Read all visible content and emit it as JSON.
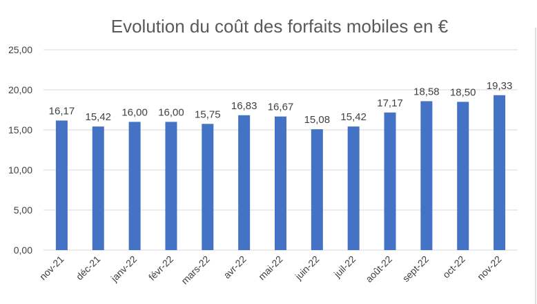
{
  "chart_data": {
    "type": "bar",
    "title": "Evolution du coût des forfaits mobiles en €",
    "categories": [
      "nov-21",
      "déc-21",
      "janv-22",
      "févr-22",
      "mars-22",
      "avr-22",
      "mai-22",
      "juin-22",
      "juil-22",
      "août-22",
      "sept-22",
      "oct-22",
      "nov-22"
    ],
    "values": [
      16.17,
      15.42,
      16.0,
      16.0,
      15.75,
      16.83,
      16.67,
      15.08,
      15.42,
      17.17,
      18.58,
      18.5,
      19.33
    ],
    "data_labels": [
      "16,17",
      "15,42",
      "16,00",
      "16,00",
      "15,75",
      "16,83",
      "16,67",
      "15,08",
      "15,42",
      "17,17",
      "18,58",
      "18,50",
      "19,33"
    ],
    "y_ticks": [
      0,
      5,
      10,
      15,
      20,
      25
    ],
    "y_tick_labels": [
      "0,00",
      "5,00",
      "10,00",
      "15,00",
      "20,00",
      "25,00"
    ],
    "ylim": [
      0,
      25
    ],
    "xlabel": "",
    "ylabel": "",
    "grid": true,
    "bar_color": "#4472C4",
    "legend": "none"
  }
}
